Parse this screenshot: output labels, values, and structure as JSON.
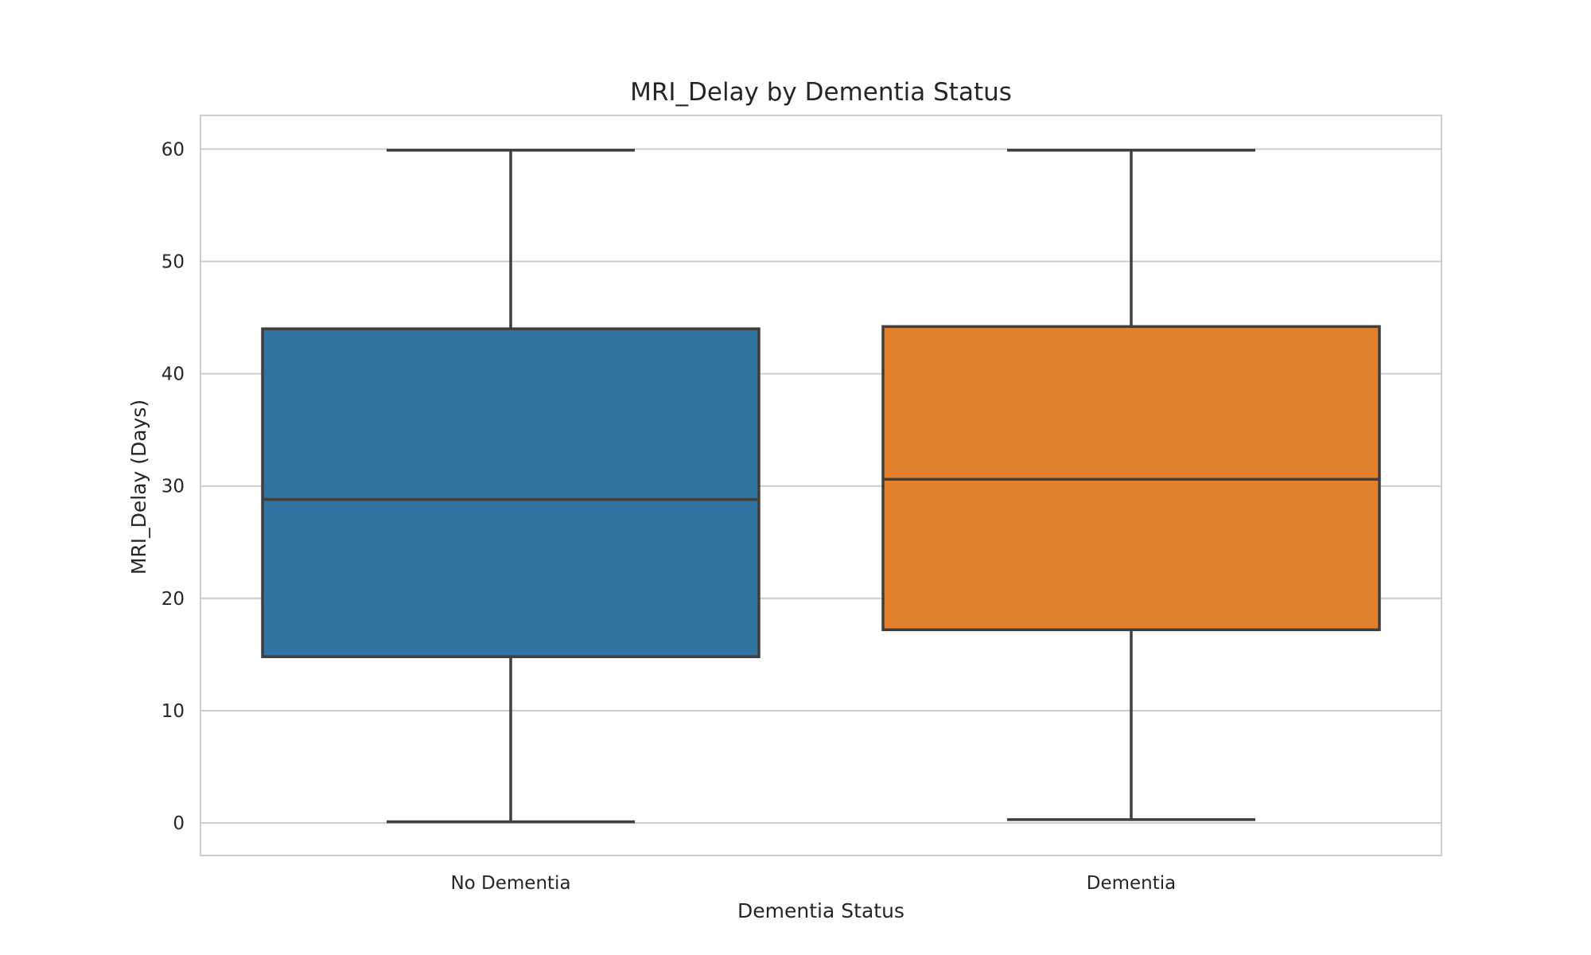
{
  "chart_data": {
    "type": "box",
    "title": "MRI_Delay by Dementia Status",
    "xlabel": "Dementia Status",
    "ylabel": "MRI_Delay (Days)",
    "ylim": [
      -2.9,
      63
    ],
    "yticks": [
      0,
      10,
      20,
      30,
      40,
      50,
      60
    ],
    "grid": true,
    "categories": [
      "No Dementia",
      "Dementia"
    ],
    "boxes": [
      {
        "category": "No Dementia",
        "whisker_low": 0.1,
        "q1": 14.8,
        "median": 28.8,
        "q3": 44.0,
        "whisker_high": 59.9,
        "color": "#3274a1"
      },
      {
        "category": "Dementia",
        "whisker_low": 0.3,
        "q1": 17.2,
        "median": 30.6,
        "q3": 44.2,
        "whisker_high": 59.9,
        "color": "#e1812c"
      }
    ]
  },
  "colors": {
    "background": "#ffffff",
    "grid": "#cccccc",
    "frame": "#cccccc",
    "box_edge": "#3f3f3f",
    "text": "#262626"
  }
}
